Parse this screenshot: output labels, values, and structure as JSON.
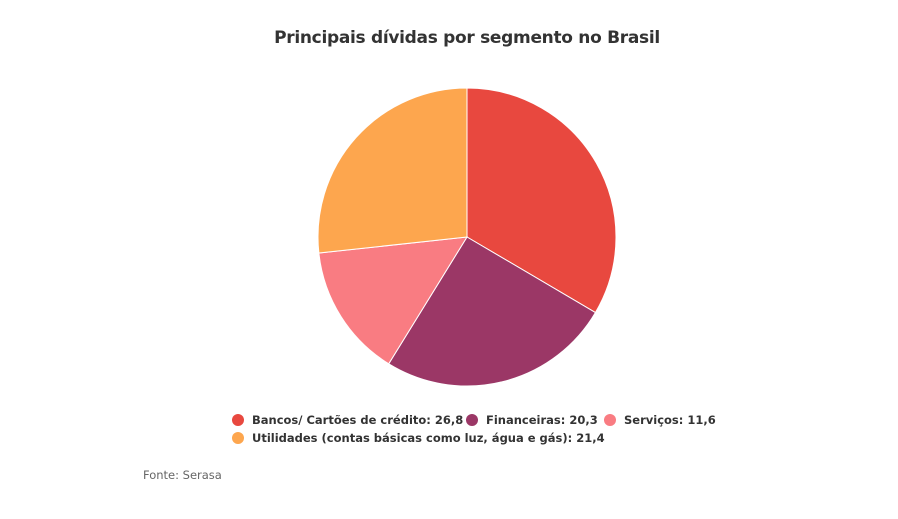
{
  "chart_data": {
    "type": "pie",
    "title": "Principais dívidas por segmento no Brasil",
    "slices": [
      {
        "label": "Bancos/ Cartões de crédito",
        "value": 26.8,
        "display": "26,8",
        "color": "#E8483F"
      },
      {
        "label": "Financeiras",
        "value": 20.3,
        "display": "20,3",
        "color": "#9B3766"
      },
      {
        "label": "Serviços",
        "value": 11.6,
        "display": "11,6",
        "color": "#F97C82"
      },
      {
        "label": "Utilidades (contas básicas como luz, água e gás)",
        "value": 21.4,
        "display": "21,4",
        "color": "#FDA64E"
      }
    ],
    "legend_placement": "bottom",
    "source": "Fonte: Serasa"
  }
}
